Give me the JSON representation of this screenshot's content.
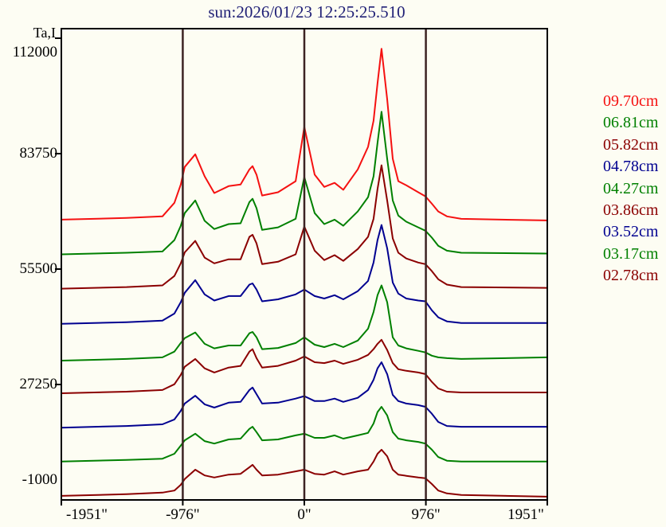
{
  "title": "sun:2026/01/23 12:25:25.510",
  "colors": {
    "background": "#fdfdf3",
    "title": "#202076",
    "axis": "#000000",
    "reference_line": "#3c2323",
    "red": "#f51111",
    "green": "#008000",
    "dark_red": "#8b0000",
    "blue": "#000090"
  },
  "y_axis": {
    "label": "Ta,I"
  },
  "legend": {
    "entries": [
      {
        "label": "09.70cm",
        "color": "#f51111"
      },
      {
        "label": "06.81cm",
        "color": "#008000"
      },
      {
        "label": "05.82cm",
        "color": "#8b0000"
      },
      {
        "label": "04.78cm",
        "color": "#000090"
      },
      {
        "label": "04.27cm",
        "color": "#008000"
      },
      {
        "label": "03.86cm",
        "color": "#8b0000"
      },
      {
        "label": "03.52cm",
        "color": "#000090"
      },
      {
        "label": "03.17cm",
        "color": "#008000"
      },
      {
        "label": "02.78cm",
        "color": "#8b0000"
      }
    ]
  },
  "chart_data": {
    "type": "line",
    "title": "sun:2026/01/23 12:25:25.510",
    "ylabel": "Ta,I",
    "xlabel": "",
    "x_unit": "arcsec",
    "xlim": [
      -1951,
      1951
    ],
    "ylim": [
      -1000,
      112000
    ],
    "grid": false,
    "legend_position": "right-outside",
    "y_ticks": [
      112000,
      83750,
      55500,
      27250,
      -1000
    ],
    "x_ticks": [
      {
        "label": "-1951\"",
        "value": -1951
      },
      {
        "label": "-976\"",
        "value": -976
      },
      {
        "label": "0\"",
        "value": 0
      },
      {
        "label": "976\"",
        "value": 976
      },
      {
        "label": "1951\"",
        "value": 1951
      }
    ],
    "reference_vlines": [
      -976,
      0,
      976
    ],
    "x": [
      -1951,
      -1427,
      -1139,
      -1043,
      -992,
      -960,
      -876,
      -800,
      -723,
      -608,
      -512,
      -441,
      -416,
      -384,
      -339,
      -211,
      -70,
      0,
      83,
      160,
      243,
      313,
      429,
      512,
      556,
      588,
      620,
      665,
      710,
      755,
      819,
      915,
      972,
      1024,
      1075,
      1145,
      1260,
      1945
    ],
    "series": [
      {
        "name": "09.70cm",
        "color": "#f51111",
        "values": [
          67600,
          68000,
          68400,
          71700,
          76200,
          80500,
          83600,
          78200,
          74100,
          75800,
          76200,
          79900,
          80700,
          78600,
          73500,
          74300,
          77000,
          90300,
          78600,
          75600,
          76600,
          74900,
          79900,
          85400,
          91800,
          101000,
          109400,
          97100,
          82500,
          77000,
          76000,
          74300,
          73300,
          71500,
          69600,
          68400,
          67800,
          67400
        ]
      },
      {
        "name": "06.81cm",
        "color": "#008000",
        "values": [
          59100,
          59500,
          59800,
          62600,
          66100,
          69200,
          72300,
          67300,
          65300,
          66500,
          66700,
          71900,
          72700,
          70400,
          65100,
          65700,
          67800,
          78000,
          69200,
          66500,
          67600,
          66100,
          69600,
          73100,
          78200,
          86400,
          94000,
          82500,
          72300,
          68600,
          67100,
          65700,
          64900,
          63200,
          61200,
          60000,
          59500,
          59300
        ]
      },
      {
        "name": "05.82cm",
        "color": "#8b0000",
        "values": [
          50700,
          51100,
          51500,
          53800,
          56900,
          59600,
          62400,
          58300,
          56900,
          57900,
          57900,
          63400,
          63900,
          61800,
          56700,
          57300,
          59100,
          65900,
          60000,
          57700,
          58900,
          57500,
          60400,
          63400,
          67800,
          75100,
          80900,
          72300,
          63000,
          59500,
          58100,
          57100,
          56700,
          55000,
          53000,
          51700,
          51100,
          50900
        ]
      },
      {
        "name": "04.78cm",
        "color": "#000090",
        "values": [
          42100,
          42500,
          42900,
          44600,
          47400,
          49700,
          52800,
          49300,
          47800,
          48900,
          48900,
          51700,
          52000,
          50500,
          47600,
          48100,
          49300,
          50500,
          48900,
          48300,
          49100,
          48100,
          50100,
          52600,
          57100,
          62600,
          66300,
          60600,
          52200,
          49500,
          48300,
          47800,
          47600,
          45400,
          43700,
          42700,
          42300,
          42300
        ]
      },
      {
        "name": "04.27cm",
        "color": "#008000",
        "values": [
          33100,
          33500,
          33900,
          35300,
          37400,
          38600,
          40000,
          37200,
          36100,
          36800,
          36800,
          39800,
          40100,
          38800,
          35900,
          36200,
          37400,
          38800,
          37000,
          36400,
          37200,
          36400,
          38000,
          40900,
          45000,
          49100,
          51500,
          47400,
          38800,
          36800,
          36100,
          35500,
          35100,
          34300,
          33900,
          33700,
          33500,
          33900
        ]
      },
      {
        "name": "03.86cm",
        "color": "#8b0000",
        "values": [
          25100,
          25500,
          25900,
          27300,
          29600,
          31600,
          33500,
          31200,
          30200,
          31400,
          31800,
          35300,
          35900,
          33700,
          31400,
          31800,
          33100,
          34100,
          32700,
          32500,
          33100,
          32300,
          33300,
          34500,
          35900,
          37200,
          38200,
          35700,
          32500,
          31000,
          30600,
          30200,
          29800,
          27900,
          26300,
          25500,
          25300,
          25300
        ]
      },
      {
        "name": "03.52cm",
        "color": "#000090",
        "values": [
          16700,
          17100,
          17500,
          18700,
          20800,
          22600,
          24500,
          22400,
          21600,
          22800,
          23000,
          25900,
          26500,
          24900,
          22600,
          22800,
          23800,
          24400,
          23200,
          23200,
          23800,
          23000,
          24000,
          25900,
          28400,
          31200,
          32700,
          29800,
          24700,
          23200,
          22600,
          22200,
          21800,
          20100,
          18100,
          17100,
          16900,
          16900
        ]
      },
      {
        "name": "03.17cm",
        "color": "#008000",
        "values": [
          8400,
          8800,
          9100,
          10300,
          12300,
          13600,
          15200,
          13400,
          12800,
          13800,
          14000,
          16400,
          16900,
          15600,
          13600,
          13800,
          14800,
          15200,
          14200,
          14200,
          14800,
          14000,
          14800,
          15400,
          17700,
          20500,
          21800,
          19700,
          15600,
          14000,
          13600,
          13200,
          12800,
          11300,
          9500,
          8600,
          8400,
          8400
        ]
      },
      {
        "name": "02.78cm",
        "color": "#8b0000",
        "values": [
          0,
          400,
          800,
          1300,
          2700,
          4100,
          6400,
          5000,
          4500,
          5200,
          5400,
          7000,
          7600,
          6400,
          5000,
          5200,
          6000,
          6400,
          5400,
          5200,
          6000,
          5200,
          6000,
          6400,
          8400,
          10300,
          11300,
          9700,
          6400,
          5200,
          4900,
          4500,
          4300,
          2900,
          1300,
          600,
          200,
          -200
        ]
      }
    ]
  }
}
